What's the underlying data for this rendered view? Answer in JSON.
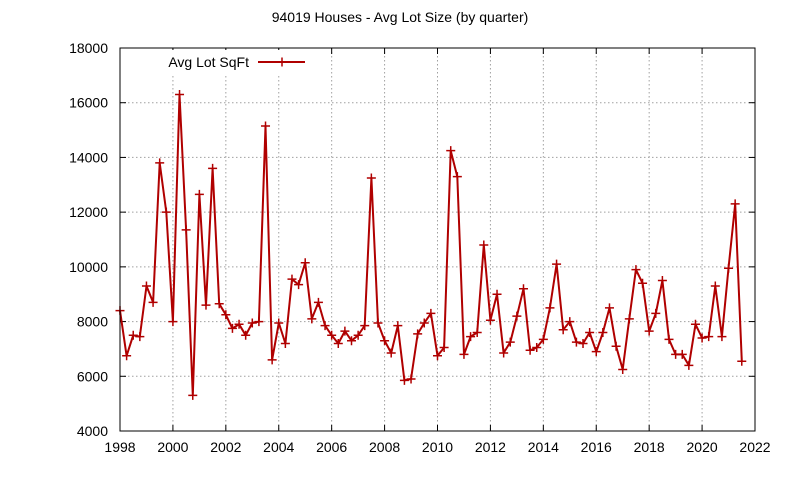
{
  "chart_data": {
    "type": "line",
    "title": "94019 Houses - Avg Lot Size (by quarter)",
    "xlabel": "",
    "ylabel": "",
    "xlim": [
      1998,
      2022
    ],
    "ylim": [
      4000,
      18000
    ],
    "x_ticks": [
      "1998",
      "2000",
      "2002",
      "2004",
      "2006",
      "2008",
      "2010",
      "2012",
      "2014",
      "2016",
      "2018",
      "2020",
      "2022"
    ],
    "y_ticks": [
      "4000",
      "6000",
      "8000",
      "10000",
      "12000",
      "14000",
      "16000",
      "18000"
    ],
    "grid": true,
    "legend_position": "top-left",
    "series": [
      {
        "name": "Avg Lot SqFt",
        "color": "#b00000",
        "marker": "plus",
        "x": [
          1998.0,
          1998.25,
          1998.5,
          1998.75,
          1999.0,
          1999.25,
          1999.5,
          1999.75,
          2000.0,
          2000.25,
          2000.5,
          2000.75,
          2001.0,
          2001.25,
          2001.5,
          2001.75,
          2002.0,
          2002.25,
          2002.5,
          2002.75,
          2003.0,
          2003.25,
          2003.5,
          2003.75,
          2004.0,
          2004.25,
          2004.5,
          2004.75,
          2005.0,
          2005.25,
          2005.5,
          2005.75,
          2006.0,
          2006.25,
          2006.5,
          2006.75,
          2007.0,
          2007.25,
          2007.5,
          2007.75,
          2008.0,
          2008.25,
          2008.5,
          2008.75,
          2009.0,
          2009.25,
          2009.5,
          2009.75,
          2010.0,
          2010.25,
          2010.5,
          2010.75,
          2011.0,
          2011.25,
          2011.5,
          2011.75,
          2012.0,
          2012.25,
          2012.5,
          2012.75,
          2013.0,
          2013.25,
          2013.5,
          2013.75,
          2014.0,
          2014.25,
          2014.5,
          2014.75,
          2015.0,
          2015.25,
          2015.5,
          2015.75,
          2016.0,
          2016.25,
          2016.5,
          2016.75,
          2017.0,
          2017.25,
          2017.5,
          2017.75,
          2018.0,
          2018.25,
          2018.5,
          2018.75,
          2019.0,
          2019.25,
          2019.5,
          2019.75,
          2020.0,
          2020.25,
          2020.5,
          2020.75,
          2021.0,
          2021.25,
          2021.5
        ],
        "y": [
          8400,
          6750,
          7500,
          7450,
          9300,
          8700,
          13800,
          12000,
          8000,
          16300,
          11350,
          5300,
          12650,
          8600,
          13600,
          8650,
          8250,
          7750,
          7900,
          7500,
          7950,
          8000,
          15150,
          6600,
          7950,
          7200,
          9550,
          9350,
          10150,
          8100,
          8700,
          7850,
          7500,
          7200,
          7650,
          7300,
          7500,
          7850,
          13250,
          7950,
          7300,
          6850,
          7850,
          5850,
          5900,
          7550,
          7950,
          8300,
          6750,
          7050,
          14250,
          13300,
          6800,
          7450,
          7600,
          10800,
          8050,
          9000,
          6850,
          7250,
          8200,
          9200,
          6950,
          7050,
          7350,
          8500,
          10100,
          7700,
          8000,
          7250,
          7200,
          7600,
          6900,
          7600,
          8500,
          7100,
          6250,
          8100,
          9900,
          9400,
          7650,
          8300,
          9500,
          7350,
          6800,
          6800,
          6400,
          7900,
          7400,
          7450,
          9300,
          7450,
          9950,
          12300,
          6550
        ]
      }
    ]
  }
}
